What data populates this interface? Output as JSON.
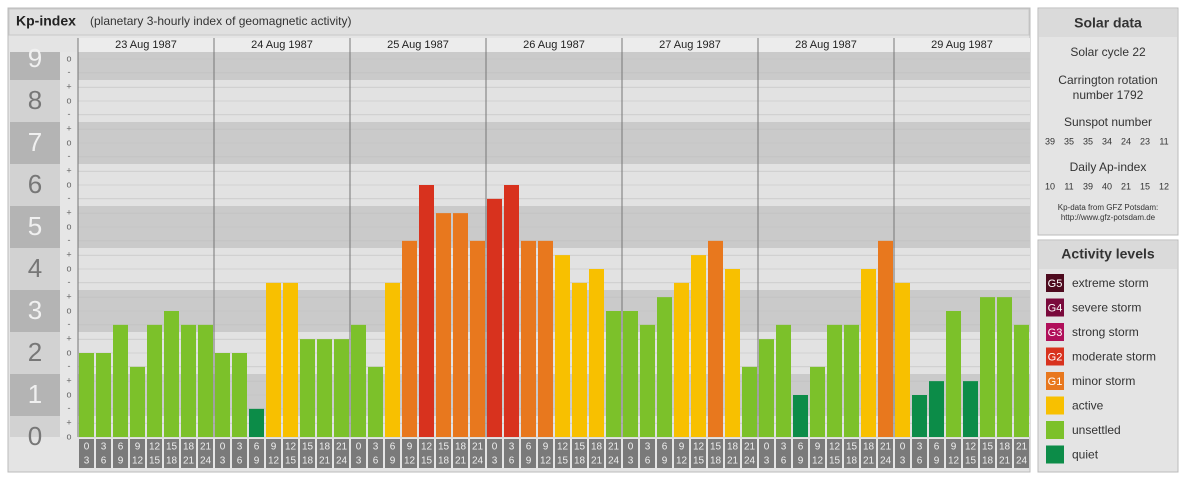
{
  "header": {
    "title": "Kp-index",
    "subtitle": "(planetary 3-hourly index of geomagnetic activity)"
  },
  "chart_data": {
    "type": "bar",
    "days": [
      "23 Aug 1987",
      "24 Aug 1987",
      "25 Aug 1987",
      "26 Aug 1987",
      "27 Aug 1987",
      "28 Aug 1987",
      "29 Aug 1987"
    ],
    "slots": [
      [
        0,
        3
      ],
      [
        3,
        6
      ],
      [
        6,
        9
      ],
      [
        9,
        12
      ],
      [
        12,
        15
      ],
      [
        15,
        18
      ],
      [
        18,
        21
      ],
      [
        21,
        24
      ]
    ],
    "values": [
      2,
      2,
      2.67,
      1.67,
      2.67,
      3,
      2.67,
      2.67,
      2,
      2,
      0.67,
      3.67,
      3.67,
      2.33,
      2.33,
      2.33,
      2.67,
      1.67,
      3.67,
      4.67,
      6,
      5.33,
      5.33,
      4.67,
      5.67,
      6,
      4.67,
      4.67,
      4.33,
      3.67,
      4,
      3,
      3,
      2.67,
      3.33,
      3.67,
      4.33,
      4.67,
      4,
      1.67,
      2.33,
      2.67,
      1,
      1.67,
      2.67,
      2.67,
      4,
      4.67,
      3.67,
      1,
      1.33,
      3,
      1.33,
      3.33,
      3.33,
      2.67
    ],
    "colors": [
      "#7cc12a",
      "#7cc12a",
      "#7cc12a",
      "#7cc12a",
      "#7cc12a",
      "#7cc12a",
      "#7cc12a",
      "#7cc12a",
      "#7cc12a",
      "#7cc12a",
      "#0c8c48",
      "#f8c000",
      "#f8c000",
      "#7cc12a",
      "#7cc12a",
      "#7cc12a",
      "#7cc12a",
      "#7cc12a",
      "#f8c000",
      "#e8781e",
      "#d8321e",
      "#e8781e",
      "#e8781e",
      "#e8781e",
      "#d8321e",
      "#d8321e",
      "#e8781e",
      "#e8781e",
      "#f8c000",
      "#f8c000",
      "#f8c000",
      "#7cc12a",
      "#7cc12a",
      "#7cc12a",
      "#7cc12a",
      "#f8c000",
      "#f8c000",
      "#e8781e",
      "#f8c000",
      "#7cc12a",
      "#7cc12a",
      "#7cc12a",
      "#0c8c48",
      "#7cc12a",
      "#7cc12a",
      "#7cc12a",
      "#f8c000",
      "#e8781e",
      "#f8c000",
      "#0c8c48",
      "#0c8c48",
      "#7cc12a",
      "#0c8c48",
      "#7cc12a",
      "#7cc12a",
      "#7cc12a"
    ],
    "ylim": [
      0,
      9
    ],
    "yticks": [
      0,
      1,
      2,
      3,
      4,
      5,
      6,
      7,
      8,
      9
    ],
    "minor_ticks": [
      {
        "value": 0,
        "label": "o"
      },
      {
        "value": 0.33,
        "label": "+"
      },
      {
        "value": 0.67,
        "label": "-"
      },
      {
        "value": 1,
        "label": "o"
      },
      {
        "value": 1.33,
        "label": "+"
      },
      {
        "value": 1.67,
        "label": "-"
      },
      {
        "value": 2,
        "label": "o"
      },
      {
        "value": 2.33,
        "label": "+"
      },
      {
        "value": 2.67,
        "label": "-"
      },
      {
        "value": 3,
        "label": "o"
      },
      {
        "value": 3.33,
        "label": "+"
      },
      {
        "value": 3.67,
        "label": "-"
      },
      {
        "value": 4,
        "label": "o"
      },
      {
        "value": 4.33,
        "label": "+"
      },
      {
        "value": 4.67,
        "label": "-"
      },
      {
        "value": 5,
        "label": "o"
      },
      {
        "value": 5.33,
        "label": "+"
      },
      {
        "value": 5.67,
        "label": "-"
      },
      {
        "value": 6,
        "label": "o"
      },
      {
        "value": 6.33,
        "label": "+"
      },
      {
        "value": 6.67,
        "label": "-"
      },
      {
        "value": 7,
        "label": "o"
      },
      {
        "value": 7.33,
        "label": "+"
      },
      {
        "value": 7.67,
        "label": "-"
      },
      {
        "value": 8,
        "label": "o"
      },
      {
        "value": 8.33,
        "label": "+"
      },
      {
        "value": 8.67,
        "label": "-"
      },
      {
        "value": 9,
        "label": "o"
      }
    ],
    "grid": true
  },
  "solar": {
    "title": "Solar data",
    "cycle": "Solar cycle 22",
    "carrington": [
      "Carrington rotation",
      "number 1792"
    ],
    "sunspot_title": "Sunspot number",
    "sunspot": [
      39,
      35,
      35,
      34,
      24,
      23,
      11
    ],
    "ap_title": "Daily Ap-index",
    "ap": [
      10,
      11,
      39,
      40,
      21,
      15,
      12
    ],
    "source": "Kp-data from GFZ Potsdam:",
    "url": "http://www.gfz-potsdam.de"
  },
  "legend": {
    "title": "Activity levels",
    "items": [
      {
        "badge": "G5",
        "label": "extreme storm",
        "color": "#4d0a1e"
      },
      {
        "badge": "G4",
        "label": "severe storm",
        "color": "#7a0a3c"
      },
      {
        "badge": "G3",
        "label": "strong storm",
        "color": "#b0105a"
      },
      {
        "badge": "G2",
        "label": "moderate storm",
        "color": "#d8321e"
      },
      {
        "badge": "G1",
        "label": "minor storm",
        "color": "#e8781e"
      },
      {
        "label": "active",
        "color": "#f8c000"
      },
      {
        "label": "unsettled",
        "color": "#7cc12a"
      },
      {
        "label": "quiet",
        "color": "#0c8c48"
      }
    ]
  }
}
